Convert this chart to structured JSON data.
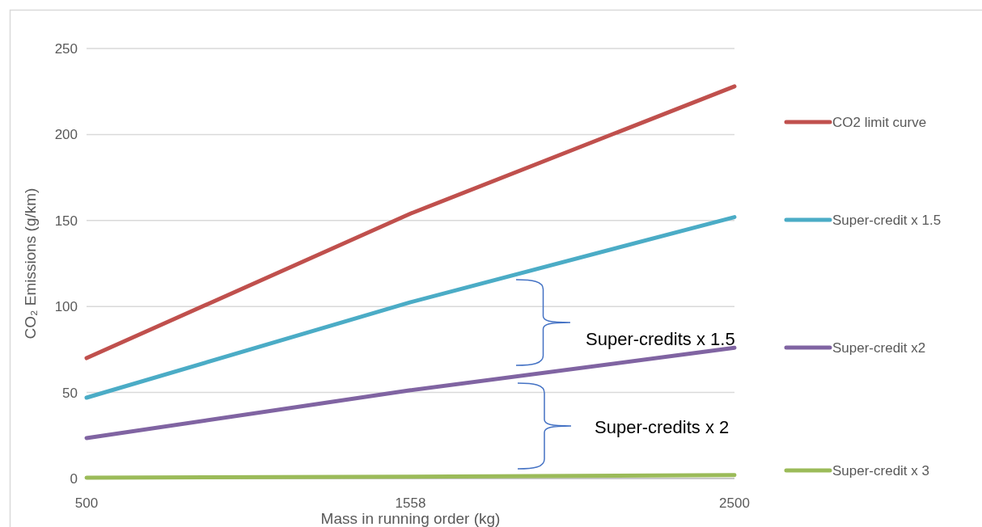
{
  "chart_data": {
    "type": "line",
    "xlabel": "Mass in running order (kg)",
    "ylabel": "CO₂ Emissions (g/km)",
    "categories": [
      "500",
      "1558",
      "2500"
    ],
    "ylim": [
      0,
      250
    ],
    "yticks": [
      0,
      50,
      100,
      150,
      200,
      250
    ],
    "grid": "y",
    "legend": "right",
    "marker": "none",
    "line_style": "solid",
    "series": [
      {
        "name": "CO2 limit curve",
        "color": "#c0504d",
        "values": [
          70,
          154,
          228
        ]
      },
      {
        "name": "Super-credit x 1.5",
        "color": "#4bacc6",
        "values": [
          47,
          102.5,
          152
        ]
      },
      {
        "name": "Super-credit x2",
        "color": "#8064a2",
        "values": [
          23.5,
          51.3,
          76
        ]
      },
      {
        "name": "Super-credit x 3",
        "color": "#9bbb59",
        "values": [
          0.5,
          1,
          2
        ]
      }
    ],
    "annotations": [
      "Super-credits x 1.5",
      "Super-credits x 2"
    ]
  }
}
